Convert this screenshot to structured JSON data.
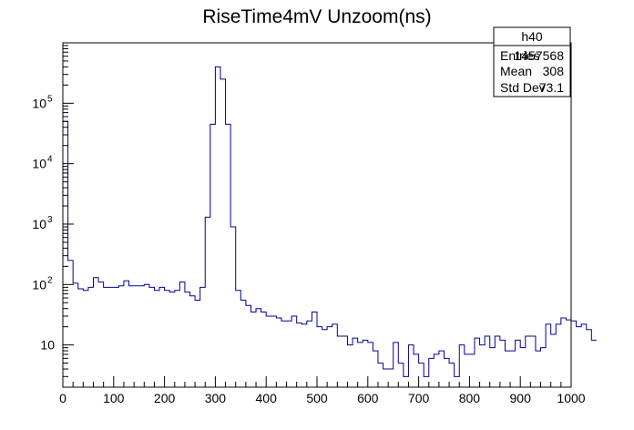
{
  "chart_data": {
    "type": "histogram",
    "title": "RiseTime4mV Unzoom(ns)",
    "xlim": [
      0,
      1000
    ],
    "ylim": [
      2,
      1000000
    ],
    "log_y": true,
    "grid": false,
    "x_tick_labels": [
      "0",
      "100",
      "200",
      "300",
      "400",
      "500",
      "600",
      "700",
      "800",
      "900",
      "1000"
    ],
    "y_tick_labels": [
      {
        "value": 10,
        "base": "10",
        "exp": ""
      },
      {
        "value": 100,
        "base": "10",
        "exp": "2"
      },
      {
        "value": 1000,
        "base": "10",
        "exp": "3"
      },
      {
        "value": 10000,
        "base": "10",
        "exp": "4"
      },
      {
        "value": 100000,
        "base": "10",
        "exp": "5"
      }
    ],
    "line_color": "#000099",
    "bin_width": 10,
    "x_start": 0,
    "values": [
      50000,
      250,
      105,
      85,
      80,
      90,
      130,
      110,
      90,
      90,
      90,
      95,
      115,
      95,
      95,
      95,
      100,
      90,
      80,
      90,
      80,
      75,
      80,
      110,
      75,
      65,
      55,
      90,
      1300,
      45000,
      400000,
      250000,
      45000,
      900,
      80,
      55,
      45,
      35,
      40,
      35,
      30,
      30,
      28,
      25,
      25,
      30,
      23,
      22,
      25,
      35,
      20,
      18,
      20,
      22,
      14,
      14,
      10,
      13,
      11,
      12,
      11,
      8,
      5,
      4,
      4,
      11,
      5,
      3,
      10,
      7,
      5,
      3,
      6,
      7,
      8,
      6,
      5,
      3,
      10,
      7,
      7,
      13,
      10,
      14,
      9,
      14,
      12,
      8,
      8,
      12,
      9,
      14,
      14,
      8,
      9,
      22,
      15,
      22,
      28,
      26,
      25,
      20,
      22,
      18,
      12
    ]
  },
  "stats_box": {
    "name": "h40",
    "rows": [
      {
        "label": "Entries",
        "value": "1457568"
      },
      {
        "label": "Mean",
        "value": "308"
      },
      {
        "label": "Std Dev",
        "value": "73.1"
      }
    ]
  }
}
